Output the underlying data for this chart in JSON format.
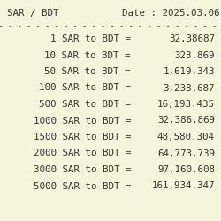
{
  "title_left": "SAR / BDT",
  "title_right": "Date : 2025.03.06",
  "rows": [
    {
      "amount": "1",
      "value": "32.38687"
    },
    {
      "amount": "10",
      "value": "323.869"
    },
    {
      "amount": "50",
      "value": "1,619.343"
    },
    {
      "amount": "100",
      "value": "3,238.687"
    },
    {
      "amount": "500",
      "value": "16,193.435"
    },
    {
      "amount": "1000",
      "value": "32,386.869"
    },
    {
      "amount": "1500",
      "value": "48,580.304"
    },
    {
      "amount": "2000",
      "value": "64,773.739"
    },
    {
      "amount": "3000",
      "value": "97,160.608"
    },
    {
      "amount": "5000",
      "value": "161,934.347"
    }
  ],
  "bg_color": "#f5f5dc",
  "text_color": "#333333",
  "font_size": 7.8,
  "separator_char": "-"
}
